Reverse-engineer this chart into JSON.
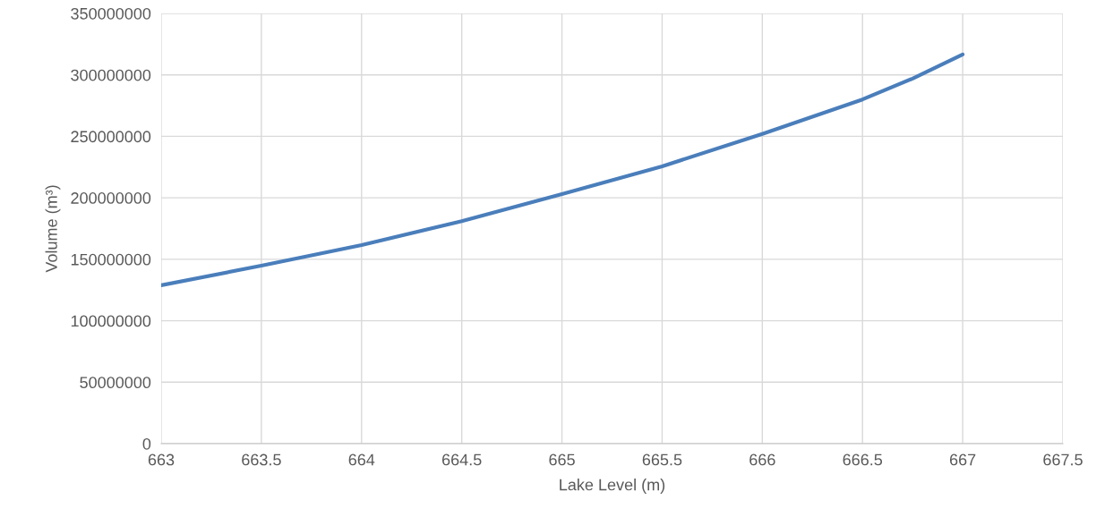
{
  "chart_data": {
    "type": "line",
    "xlabel": "Lake Level (m)",
    "ylabel": "Volume (m³)",
    "series": [
      {
        "color": "#4a7ebb",
        "x": [
          663,
          663.5,
          664,
          664.5,
          665,
          665.5,
          666,
          666.5,
          666.75,
          667
        ],
        "values": [
          128800000,
          144800000,
          161600000,
          181000000,
          203000000,
          225600000,
          252000000,
          280000000,
          297000000,
          316600000
        ]
      }
    ],
    "xlim": [
      663,
      667.5
    ],
    "xticks": [
      663,
      663.5,
      664,
      664.5,
      665,
      665.5,
      666,
      666.5,
      667,
      667.5
    ],
    "ylim": [
      0,
      350000000
    ],
    "yticks": [
      0,
      50000000,
      100000000,
      150000000,
      200000000,
      250000000,
      300000000,
      350000000
    ],
    "grid": true,
    "marker": "none",
    "line_style": "solid"
  }
}
